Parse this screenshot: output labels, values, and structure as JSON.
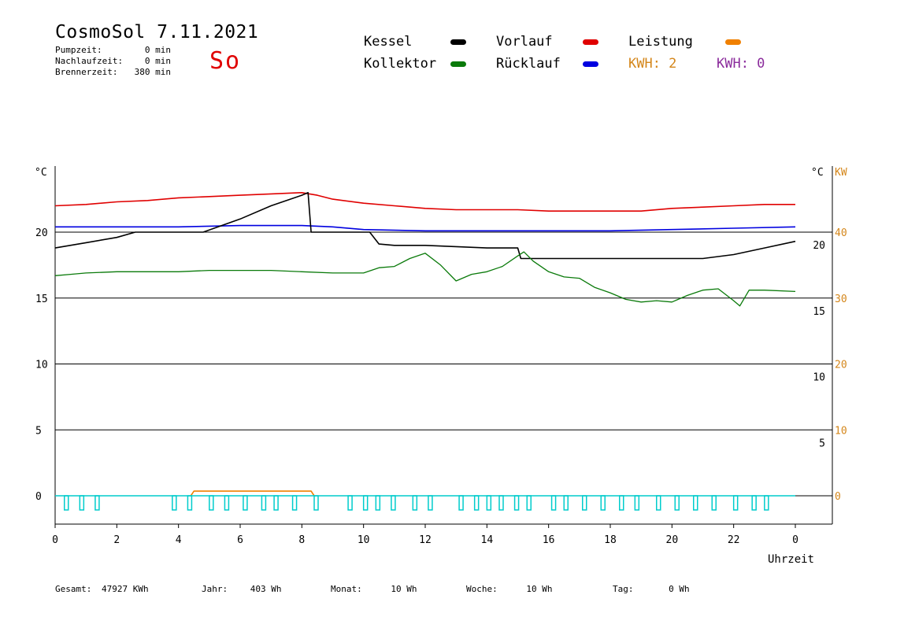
{
  "header": {
    "title": "CosmoSol 7.11.2021",
    "day": "So",
    "stats": [
      {
        "label": "Pumpzeit:",
        "value": "0 min"
      },
      {
        "label": "Nachlaufzeit:",
        "value": "0 min"
      },
      {
        "label": "Brennerzeit:",
        "value": "380 min"
      }
    ]
  },
  "legend": {
    "kessel": {
      "label": "Kessel",
      "color": "#000000"
    },
    "kollektor": {
      "label": "Kollektor",
      "color": "#0a7a0a"
    },
    "vorlauf": {
      "label": "Vorlauf",
      "color": "#e00000"
    },
    "ruecklauf": {
      "label": "Rücklauf",
      "color": "#0000e0"
    },
    "leistung": {
      "label": "Leistung",
      "color": "#f08000"
    },
    "kwh1": {
      "label": "KWH: 2",
      "color": "#d4861a"
    },
    "kwh2": {
      "label": "KWH: 0",
      "color": "#8b2c9c"
    }
  },
  "footer": {
    "gesamt": {
      "label": "Gesamt:",
      "value": "47927 KWh"
    },
    "jahr": {
      "label": "Jahr:",
      "value": "403 Wh"
    },
    "monat": {
      "label": "Monat:",
      "value": "10 Wh"
    },
    "woche": {
      "label": "Woche:",
      "value": "10 Wh"
    },
    "tag": {
      "label": "Tag:",
      "value": "0 Wh"
    }
  },
  "chart_data": {
    "type": "line",
    "xlabel": "Uhrzeit",
    "x_ticks": [
      "0",
      "2",
      "4",
      "6",
      "8",
      "10",
      "12",
      "14",
      "16",
      "18",
      "20",
      "22",
      "0"
    ],
    "xlim": [
      0,
      24
    ],
    "ylabel_left": "°C",
    "ylabel_right_temp": "°C",
    "ylabel_right_power": "KW",
    "ylim": [
      -1.5,
      25
    ],
    "y_ticks_left": [
      "0",
      "5",
      "10",
      "15",
      "20"
    ],
    "y_ticks_right": [
      "5",
      "10",
      "15",
      "20"
    ],
    "y_ticks_power": [
      "0",
      "10",
      "20",
      "30",
      "40"
    ],
    "gridlines_y": [
      0,
      5,
      10,
      15,
      20
    ],
    "series": [
      {
        "name": "Vorlauf",
        "color": "#e00000",
        "x": [
          0,
          1,
          2,
          3,
          4,
          5,
          6,
          7,
          8,
          8.5,
          9,
          10,
          11,
          12,
          13,
          14,
          15,
          16,
          17,
          18,
          19,
          20,
          21,
          22,
          23,
          24
        ],
        "y": [
          22.0,
          22.1,
          22.3,
          22.4,
          22.6,
          22.7,
          22.8,
          22.9,
          23.0,
          22.8,
          22.5,
          22.2,
          22.0,
          21.8,
          21.7,
          21.7,
          21.7,
          21.6,
          21.6,
          21.6,
          21.6,
          21.8,
          21.9,
          22.0,
          22.1,
          22.1
        ]
      },
      {
        "name": "Rücklauf",
        "color": "#0000e0",
        "x": [
          0,
          2,
          4,
          6,
          8,
          9,
          10,
          12,
          14,
          16,
          18,
          20,
          22,
          24
        ],
        "y": [
          20.4,
          20.4,
          20.4,
          20.5,
          20.5,
          20.4,
          20.2,
          20.1,
          20.1,
          20.1,
          20.1,
          20.2,
          20.3,
          20.4
        ]
      },
      {
        "name": "Kessel",
        "color": "#000000",
        "x": [
          0,
          1,
          2,
          2.6,
          4.8,
          6,
          7,
          8,
          8.2,
          8.3,
          10.2,
          10.5,
          11,
          12,
          13,
          14,
          15,
          15.1,
          16,
          18,
          20,
          21,
          22,
          23,
          24
        ],
        "y": [
          18.8,
          19.2,
          19.6,
          20.0,
          20.0,
          21.0,
          22.0,
          22.8,
          23.0,
          20.0,
          20.0,
          19.1,
          19.0,
          19.0,
          18.9,
          18.8,
          18.8,
          18.0,
          18.0,
          18.0,
          18.0,
          18.0,
          18.3,
          18.8,
          19.3
        ]
      },
      {
        "name": "Kollektor",
        "color": "#0a7a0a",
        "x": [
          0,
          0.5,
          1,
          2,
          3,
          4,
          5,
          6,
          7,
          8,
          9,
          10,
          10.5,
          11,
          11.5,
          12,
          12.5,
          13,
          13.5,
          14,
          14.5,
          15,
          15.2,
          15.5,
          16,
          16.5,
          17,
          17.5,
          18,
          18.5,
          19,
          19.5,
          20,
          20.5,
          21,
          21.5,
          22,
          22.2,
          22.5,
          23,
          24
        ],
        "y": [
          16.7,
          16.8,
          16.9,
          17.0,
          17.0,
          17.0,
          17.1,
          17.1,
          17.1,
          17.0,
          16.9,
          16.9,
          17.3,
          17.4,
          18.0,
          18.4,
          17.5,
          16.3,
          16.8,
          17.0,
          17.4,
          18.2,
          18.5,
          17.8,
          17.0,
          16.6,
          16.5,
          15.8,
          15.4,
          14.9,
          14.7,
          14.8,
          14.7,
          15.2,
          15.6,
          15.7,
          14.8,
          14.4,
          15.6,
          15.6,
          15.5
        ]
      },
      {
        "name": "Leistung",
        "color": "#f08000",
        "x": [
          4.4,
          4.5,
          8.3,
          8.4
        ],
        "y": [
          0.0,
          0.35,
          0.35,
          0.0
        ]
      }
    ],
    "pulses": {
      "name": "Pumpe",
      "color": "#00cccc",
      "x_starts": [
        0.3,
        0.8,
        1.3,
        3.8,
        4.3,
        5.0,
        5.5,
        6.1,
        6.7,
        7.1,
        7.7,
        8.4,
        9.5,
        10.0,
        10.4,
        10.9,
        11.6,
        12.1,
        13.1,
        13.6,
        14.0,
        14.4,
        14.9,
        15.3,
        16.1,
        16.5,
        17.1,
        17.7,
        18.3,
        18.8,
        19.5,
        20.1,
        20.7,
        21.3,
        22.0,
        22.6,
        23.0
      ]
    }
  }
}
